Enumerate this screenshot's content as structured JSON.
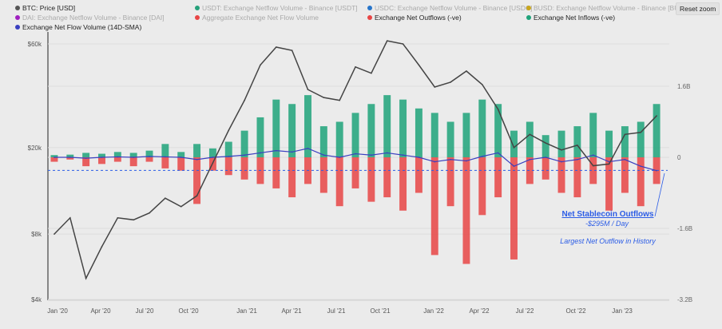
{
  "legend": [
    {
      "label": "BTC: Price [USD]",
      "color": "#555555",
      "active": true
    },
    {
      "label": "USDT: Exchange Netflow Volume - Binance [USDT]",
      "color": "#26a17b",
      "active": false
    },
    {
      "label": "USDC: Exchange Netflow Volume - Binance [USDC]",
      "color": "#2775ca",
      "active": false
    },
    {
      "label": "BUSD: Exchange Netflow Volume - Binance [BUSD]",
      "color": "#c9a61d",
      "active": false
    },
    {
      "label": "DAI: Exchange Netflow Volume - Binance [DAI]",
      "color": "#a020c0",
      "active": false
    },
    {
      "label": "Aggregate Exchange Net Flow Volume",
      "color": "#e84545",
      "active": false
    },
    {
      "label": "Exchange Net Outflows (-ve)",
      "color": "#e84545",
      "active": true
    },
    {
      "label": "Exchange Net Inflows (-ve)",
      "color": "#1fa37a",
      "active": true
    },
    {
      "label": "Exchange Net Flow Volume (14D-SMA)",
      "color": "#3a3fc0",
      "active": true
    }
  ],
  "reset_zoom": "Reset zoom",
  "annotation": {
    "title": "Net Stablecoin Outflows",
    "value": "-$295M / Day",
    "note": "Largest Net Outflow in History",
    "color": "#2b5ce6"
  },
  "chart_data": {
    "type": "bar+line",
    "x": [
      "2020-01",
      "2020-02",
      "2020-03",
      "2020-04",
      "2020-05",
      "2020-06",
      "2020-07",
      "2020-08",
      "2020-09",
      "2020-10",
      "2020-11",
      "2020-12",
      "2021-01",
      "2021-02",
      "2021-03",
      "2021-04",
      "2021-05",
      "2021-06",
      "2021-07",
      "2021-08",
      "2021-09",
      "2021-10",
      "2021-11",
      "2021-12",
      "2022-01",
      "2022-02",
      "2022-03",
      "2022-04",
      "2022-05",
      "2022-06",
      "2022-07",
      "2022-08",
      "2022-09",
      "2022-10",
      "2022-11",
      "2022-12",
      "2023-01",
      "2023-02",
      "2023-03"
    ],
    "x_ticks": [
      "Jan '20",
      "Apr '20",
      "Jul '20",
      "Oct '20",
      "Jan '21",
      "Apr '21",
      "Jul '21",
      "Oct '21",
      "Jan '22",
      "Apr '22",
      "Jul '22",
      "Oct '22",
      "Jan '23"
    ],
    "left_axis": {
      "scale": "log",
      "ticks": [
        "$4k",
        "$8k",
        "$20k",
        "$60k"
      ],
      "tick_values": [
        4000,
        8000,
        20000,
        60000
      ]
    },
    "right_axis": {
      "ticks": [
        "1.6B",
        "0",
        "-1.6B",
        "-3.2B"
      ],
      "tick_values": [
        1.6,
        0,
        -1.6,
        -3.2
      ],
      "unit": "B USD"
    },
    "series": [
      {
        "name": "BTC: Price [USD]",
        "type": "line",
        "color": "#444444",
        "values": [
          8000,
          9500,
          5000,
          7000,
          9500,
          9300,
          10000,
          11700,
          10700,
          12000,
          17000,
          24000,
          33000,
          48000,
          58000,
          56000,
          37000,
          34000,
          33000,
          47000,
          44000,
          62000,
          60000,
          48000,
          38000,
          40000,
          45000,
          39000,
          30000,
          20000,
          23000,
          21000,
          19500,
          20500,
          16500,
          16800,
          23000,
          23500,
          28000
        ]
      },
      {
        "name": "Exchange Net Inflows (-ve)",
        "type": "bar",
        "color": "#1fa37a",
        "values": [
          0.05,
          0.06,
          0.1,
          0.08,
          0.12,
          0.1,
          0.15,
          0.3,
          0.12,
          0.3,
          0.2,
          0.35,
          0.6,
          0.9,
          1.3,
          1.2,
          1.4,
          0.7,
          0.8,
          1.0,
          1.2,
          1.4,
          1.3,
          1.1,
          1.0,
          0.8,
          1.0,
          1.3,
          1.2,
          0.6,
          0.8,
          0.5,
          0.6,
          0.7,
          1.0,
          0.6,
          0.7,
          0.8,
          1.2
        ]
      },
      {
        "name": "Exchange Net Outflows (-ve)",
        "type": "bar",
        "color": "#e84545",
        "values": [
          -0.1,
          -0.05,
          -0.2,
          -0.15,
          -0.1,
          -0.2,
          -0.1,
          -0.25,
          -0.3,
          -1.05,
          -0.3,
          -0.4,
          -0.5,
          -0.6,
          -0.7,
          -0.9,
          -0.6,
          -0.8,
          -1.1,
          -0.7,
          -1.0,
          -0.9,
          -1.2,
          -0.8,
          -2.2,
          -1.1,
          -2.4,
          -1.3,
          -0.9,
          -2.3,
          -0.6,
          -0.5,
          -0.8,
          -0.9,
          -0.6,
          -1.2,
          -0.8,
          -1.1,
          -0.6
        ]
      },
      {
        "name": "Exchange Net Flow Volume (14D-SMA)",
        "type": "line",
        "color": "#3a3fc0",
        "values": [
          0,
          0,
          -0.02,
          0,
          0.01,
          0,
          0.02,
          0.01,
          0,
          -0.05,
          0,
          0.02,
          0.05,
          0.1,
          0.15,
          0.12,
          0.2,
          0.05,
          0,
          0.08,
          0.05,
          0.1,
          0.05,
          0,
          -0.1,
          -0.05,
          -0.08,
          0.02,
          0.1,
          -0.2,
          -0.05,
          0,
          -0.1,
          -0.05,
          0.05,
          -0.1,
          -0.05,
          -0.2,
          -0.3
        ]
      }
    ],
    "reference_line": {
      "value": -0.295,
      "style": "dashed",
      "color": "#2b5ce6"
    },
    "grid": true,
    "legend_position": "top-left"
  }
}
